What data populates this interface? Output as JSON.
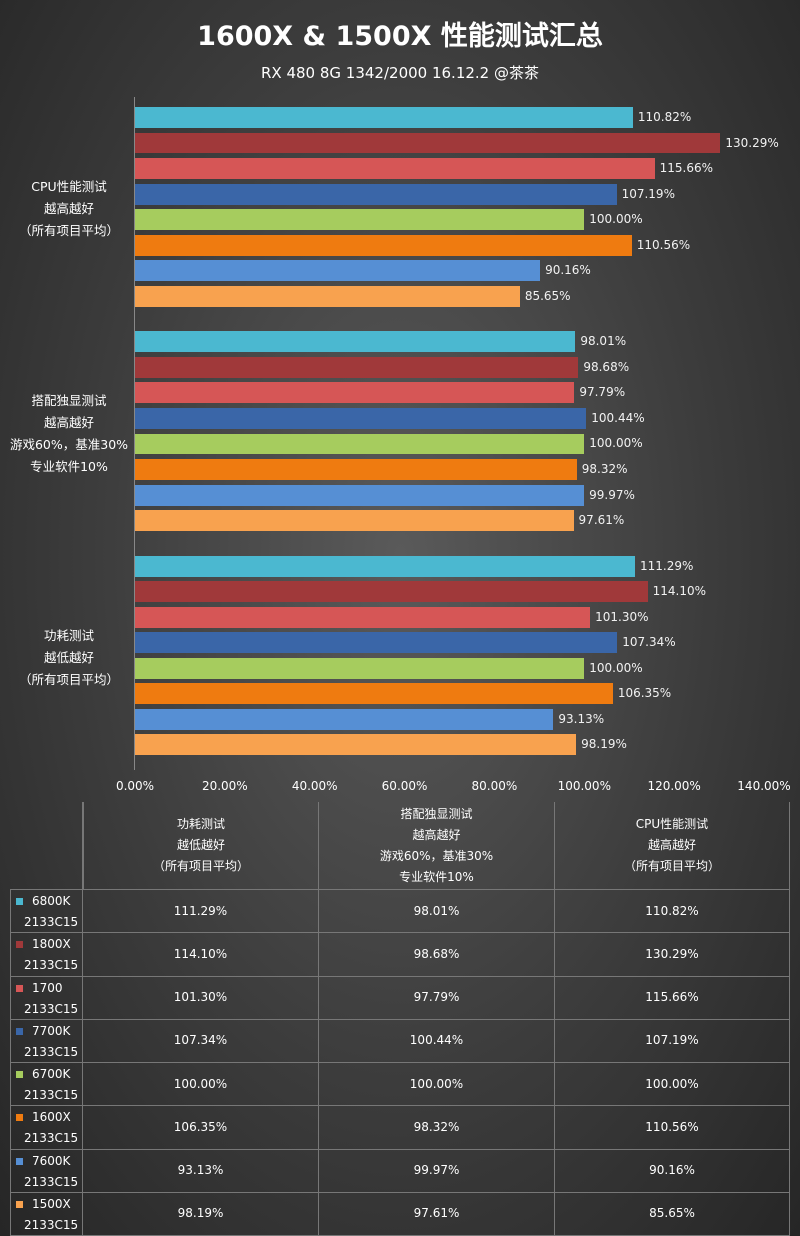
{
  "chart_data": {
    "type": "bar",
    "orientation": "horizontal",
    "title": "1600X & 1500X 性能测试汇总",
    "subtitle": "RX 480 8G 1342/2000 16.12.2 @茶茶",
    "categories": [
      "功耗测试\n越低越好\n（所有项目平均）",
      "搭配独显测试\n越高越好\n游戏60%，基准30%\n专业软件10%",
      "CPU性能测试\n越高越好\n（所有项目平均）"
    ],
    "series": [
      {
        "name": "6800K\n2133C15",
        "color": "#4bb8d0",
        "values": [
          111.29,
          98.01,
          110.82
        ],
        "value_labels": [
          "111.29%",
          "98.01%",
          "110.82%"
        ]
      },
      {
        "name": "1800X\n2133C15",
        "color": "#a0393a",
        "values": [
          114.1,
          98.68,
          130.29
        ],
        "value_labels": [
          "114.10%",
          "98.68%",
          "130.29%"
        ]
      },
      {
        "name": "1700\n2133C15",
        "color": "#d65656",
        "values": [
          101.3,
          97.79,
          115.66
        ],
        "value_labels": [
          "101.30%",
          "97.79%",
          "115.66%"
        ]
      },
      {
        "name": "7700K\n2133C15",
        "color": "#3a66a8",
        "values": [
          107.34,
          100.44,
          107.19
        ],
        "value_labels": [
          "107.34%",
          "100.44%",
          "107.19%"
        ]
      },
      {
        "name": "6700K\n2133C15",
        "color": "#a6cc5e",
        "values": [
          100.0,
          100.0,
          100.0
        ],
        "value_labels": [
          "100.00%",
          "100.00%",
          "100.00%"
        ]
      },
      {
        "name": "1600X\n2133C15",
        "color": "#ef7b10",
        "values": [
          106.35,
          98.32,
          110.56
        ],
        "value_labels": [
          "106.35%",
          "98.32%",
          "110.56%"
        ]
      },
      {
        "name": "7600K\n2133C15",
        "color": "#568fd4",
        "values": [
          93.13,
          99.97,
          90.16
        ],
        "value_labels": [
          "93.13%",
          "99.97%",
          "90.16%"
        ]
      },
      {
        "name": "1500X\n2133C15",
        "color": "#f8a24f",
        "values": [
          98.19,
          97.61,
          85.65
        ],
        "value_labels": [
          "98.19%",
          "97.61%",
          "85.65%"
        ]
      }
    ],
    "xlim": [
      0,
      140
    ],
    "xticks": [
      {
        "value": 0,
        "label": "0.00%"
      },
      {
        "value": 20,
        "label": "20.00%"
      },
      {
        "value": 40,
        "label": "40.00%"
      },
      {
        "value": 60,
        "label": "60.00%"
      },
      {
        "value": 80,
        "label": "80.00%"
      },
      {
        "value": 100,
        "label": "100.00%"
      },
      {
        "value": 120,
        "label": "120.00%"
      },
      {
        "value": 140,
        "label": "140.00%"
      }
    ],
    "grid": false,
    "data_table": true
  }
}
